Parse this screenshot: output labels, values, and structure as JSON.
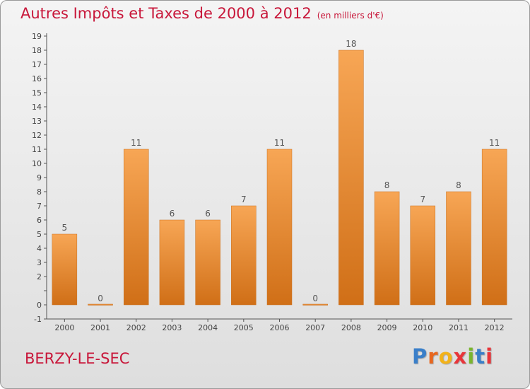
{
  "page": {
    "title": "Autres Impôts et Taxes de 2000 à 2012",
    "unit": "(en milliers d'€)",
    "commune": "BERZY-LE-SEC",
    "logo": [
      "P",
      "r",
      "o",
      "x",
      "i",
      "t",
      "i"
    ]
  },
  "colors": {
    "title": "#c8173a",
    "bar_top": "#f7a655",
    "bar_bottom": "#d06f17",
    "logo": [
      "#3a7fc9",
      "#e8671f",
      "#f2b21a",
      "#e8353a",
      "#7ab52e",
      "#3a7fc9",
      "#e8353a"
    ]
  },
  "chart_data": {
    "type": "bar",
    "title": "Autres Impôts et Taxes de 2000 à 2012",
    "subtitle": "(en milliers d'€)",
    "categories": [
      "2000",
      "2001",
      "2002",
      "2003",
      "2004",
      "2005",
      "2006",
      "2007",
      "2008",
      "2009",
      "2010",
      "2011",
      "2012"
    ],
    "values": [
      5,
      0,
      11,
      6,
      6,
      7,
      11,
      0,
      18,
      8,
      7,
      8,
      11
    ],
    "ylim": [
      -1,
      19
    ],
    "yticks": [
      -1,
      0,
      1,
      2,
      3,
      4,
      5,
      6,
      7,
      8,
      9,
      10,
      11,
      12,
      13,
      14,
      15,
      16,
      17,
      18,
      19
    ],
    "ytick_labels": [
      "-1",
      "0",
      "",
      "2",
      "3",
      "4",
      "5",
      "6",
      "7",
      "8",
      "9",
      "10",
      "11",
      "12",
      "13",
      "14",
      "15",
      "16",
      "17",
      "18",
      "19"
    ],
    "grid": false,
    "legend": "none"
  }
}
